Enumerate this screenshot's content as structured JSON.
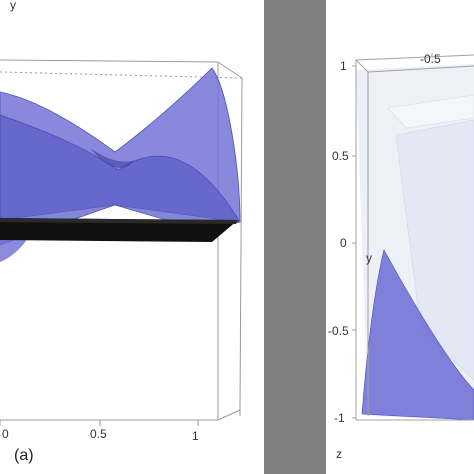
{
  "panel_a": {
    "axis_label_y": "y",
    "tick_labels": [
      "0",
      "0.5",
      "1"
    ],
    "panel_label": "(a)"
  },
  "panel_b": {
    "top_tick_labels": [
      "-0.5"
    ],
    "y_tick_labels": [
      "1",
      "0.5",
      "0",
      "-0.5",
      "-1"
    ],
    "axis_label_y": "y",
    "axis_label_z": "z"
  },
  "colors": {
    "surface_blue": "#6e6fd6",
    "surface_light": "#e9e9f6",
    "band_black": "#111111",
    "frame_gray": "#9a9a9a",
    "separator_gray": "#7d7d7d"
  }
}
